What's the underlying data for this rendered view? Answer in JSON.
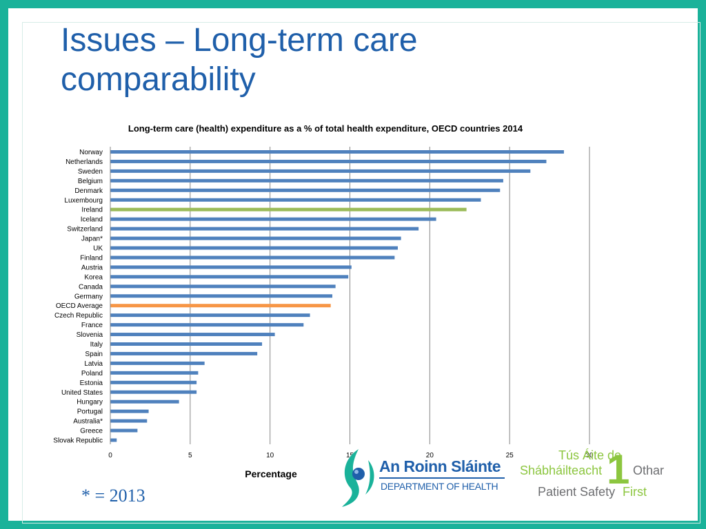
{
  "slide": {
    "title_line1": "Issues – Long-term care",
    "title_line2": "comparability",
    "footnote": "* = 2013",
    "colors": {
      "frame": "#1ab29a",
      "title": "#1f5faa",
      "default_bar": "#4f81bd",
      "ireland_bar": "#9bbb59",
      "average_bar": "#f79646"
    }
  },
  "chart_data": {
    "type": "bar",
    "orientation": "horizontal",
    "title": "Long-term care (health) expenditure as a % of total health expenditure,  OECD countries 2014",
    "xlabel": "Percentage",
    "ylabel": "",
    "xlim": [
      0,
      30
    ],
    "xticks": [
      0,
      5,
      10,
      15,
      20,
      25,
      30
    ],
    "grid": true,
    "categories": [
      "Norway",
      "Netherlands",
      "Sweden",
      "Belgium",
      "Denmark",
      "Luxembourg",
      "Ireland",
      "Iceland",
      "Switzerland",
      "Japan*",
      "UK",
      "Finland",
      "Austria",
      "Korea",
      "Canada",
      "Germany",
      "OECD Average",
      "Czech Republic",
      "France",
      "Slovenia",
      "Italy",
      "Spain",
      "Latvia",
      "Poland",
      "Estonia",
      "United States",
      "Hungary",
      "Portugal",
      "Australia*",
      "Greece",
      "Slovak Republic"
    ],
    "values": [
      28.4,
      27.3,
      26.3,
      24.6,
      24.4,
      23.2,
      22.3,
      20.4,
      19.3,
      18.2,
      18.0,
      17.8,
      15.1,
      14.9,
      14.1,
      13.9,
      13.8,
      12.5,
      12.1,
      10.3,
      9.5,
      9.2,
      5.9,
      5.5,
      5.4,
      5.4,
      4.3,
      2.4,
      2.3,
      1.7,
      0.4
    ],
    "highlight": {
      "Ireland": "#9bbb59",
      "OECD Average": "#f79646"
    }
  },
  "logos": {
    "department": {
      "name": "An Roinn Sláinte",
      "subtitle": "DEPARTMENT OF HEALTH"
    },
    "patient_safety": {
      "line1": "Tús Áite do",
      "line2": "Shábháilteacht",
      "line2b": "Othar",
      "line3": "Patient Safety",
      "line3b": "First",
      "numeral": "1"
    }
  }
}
